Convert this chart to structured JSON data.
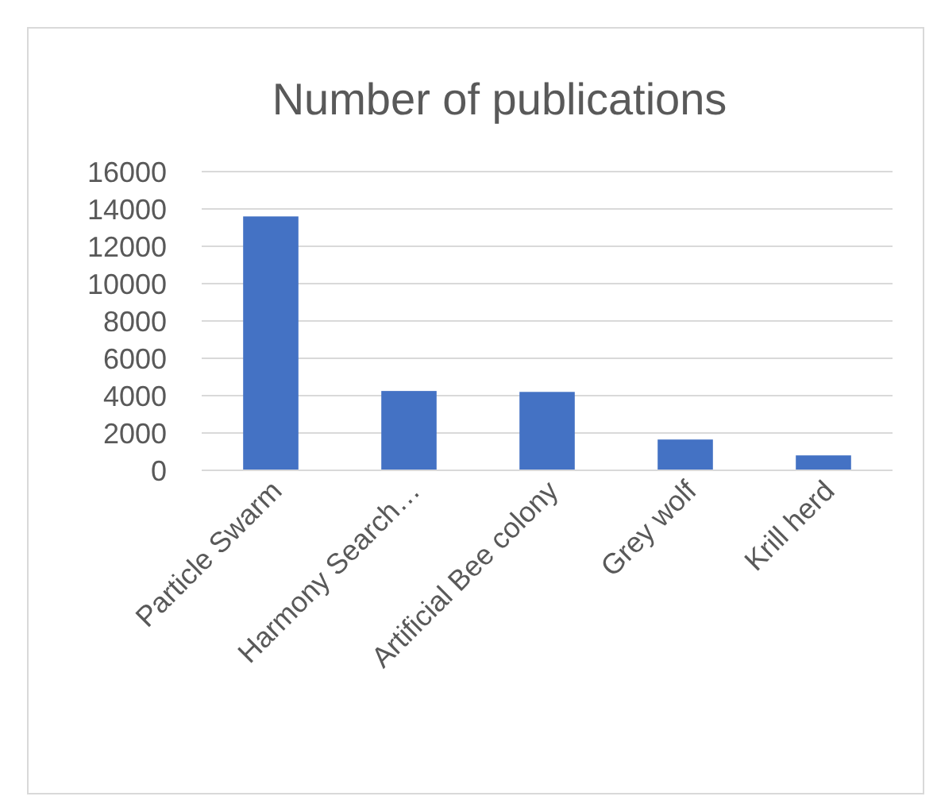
{
  "chart_data": {
    "type": "bar",
    "title": "Number of publications",
    "categories": [
      "Particle Swarm",
      "Harmony Search…",
      "Artificial Bee colony",
      "Grey wolf",
      "Krill herd"
    ],
    "values": [
      13600,
      4250,
      4200,
      1650,
      800
    ],
    "color": "#4472c4",
    "ylim": [
      0,
      16000
    ],
    "yticks": [
      0,
      2000,
      4000,
      6000,
      8000,
      10000,
      12000,
      14000,
      16000
    ],
    "grid": "y"
  }
}
